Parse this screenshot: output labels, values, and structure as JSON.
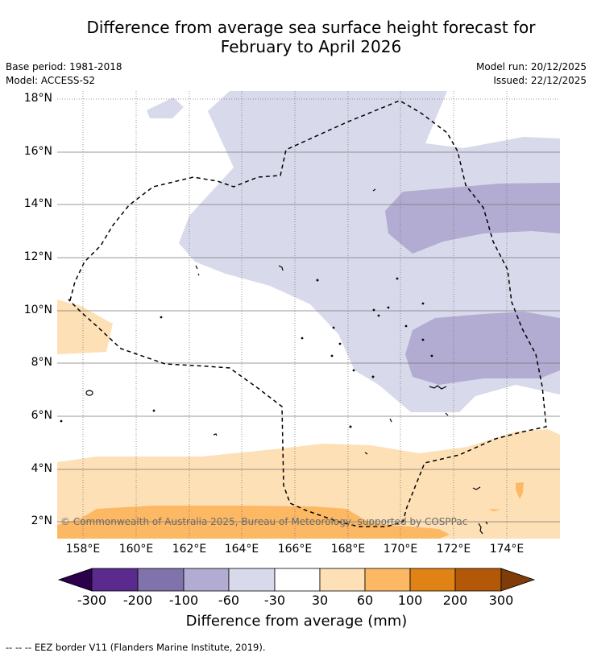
{
  "title_line1": "Difference from average sea surface height forecast for",
  "title_line2": "February to April 2026",
  "meta_left": {
    "base_period": "Base period: 1981-2018",
    "model": "Model: ACCESS-S2"
  },
  "meta_right": {
    "model_run": "Model run: 20/12/2025",
    "issued": "Issued: 22/12/2025"
  },
  "map": {
    "lat_labels": [
      "18°N",
      "16°N",
      "14°N",
      "12°N",
      "10°N",
      "8°N",
      "6°N",
      "4°N",
      "2°N"
    ],
    "lon_labels": [
      "158°E",
      "160°E",
      "162°E",
      "164°E",
      "166°E",
      "168°E",
      "170°E",
      "172°E",
      "174°E"
    ],
    "copyright": "© Commonwealth of Australia 2025, Bureau of Meteorology, supported by COSPPac"
  },
  "colorbar": {
    "title": "Difference from average (mm)",
    "ticks": [
      "-300",
      "-200",
      "-100",
      "-60",
      "-30",
      "30",
      "60",
      "100",
      "200",
      "300"
    ],
    "colors": [
      "#2d004b",
      "#5b2a8e",
      "#8073ac",
      "#b2abd2",
      "#d8daeb",
      "#ffffff",
      "#fee0b6",
      "#fdb863",
      "#e08214",
      "#b35806",
      "#7f3b08"
    ]
  },
  "footnote": "--  --  -- EEZ border V11 (Flanders Marine Institute, 2019)."
}
